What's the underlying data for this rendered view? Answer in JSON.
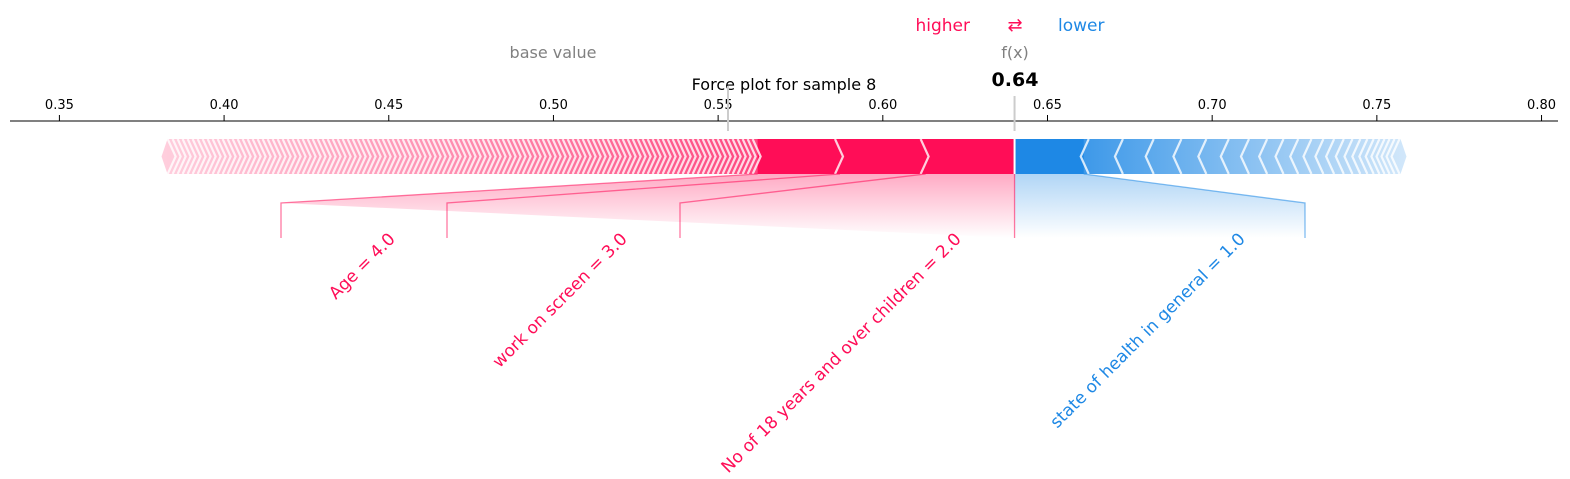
{
  "chart_data": {
    "type": "force",
    "title": "Force plot for sample 8",
    "legend": {
      "higher": "higher",
      "lower": "lower",
      "arrow": "⇄"
    },
    "base_value_label": "base value",
    "output_label": "f(x)",
    "base_value": 0.553,
    "output_value": 0.64,
    "output_value_text": "0.64",
    "xlim": [
      0.335,
      0.805
    ],
    "ticks": [
      0.35,
      0.4,
      0.45,
      0.5,
      0.55,
      0.6,
      0.65,
      0.7,
      0.75,
      0.8
    ],
    "tick_labels": [
      "0.35",
      "0.40",
      "0.45",
      "0.50",
      "0.55",
      "0.60",
      "0.65",
      "0.70",
      "0.75",
      "0.80"
    ],
    "bar_extent": {
      "positive_start": 0.381,
      "negative_end": 0.759
    },
    "positive_features": [
      {
        "label": "No of 18 years and over children = 2.0",
        "start": 0.613,
        "end": 0.64
      },
      {
        "label": "work on screen = 3.0",
        "start": 0.587,
        "end": 0.613
      },
      {
        "label": "Age = 4.0",
        "start": 0.562,
        "end": 0.587
      }
    ],
    "negative_features": [
      {
        "label": "state of health in general = 1.0",
        "start": 0.64,
        "end": 0.661
      }
    ],
    "colors": {
      "positive": "#ff0d57",
      "negative": "#1e88e5",
      "positive_light": "#ffc3d5",
      "negative_light": "#d1e6fa",
      "label_gray": "#808080"
    }
  }
}
